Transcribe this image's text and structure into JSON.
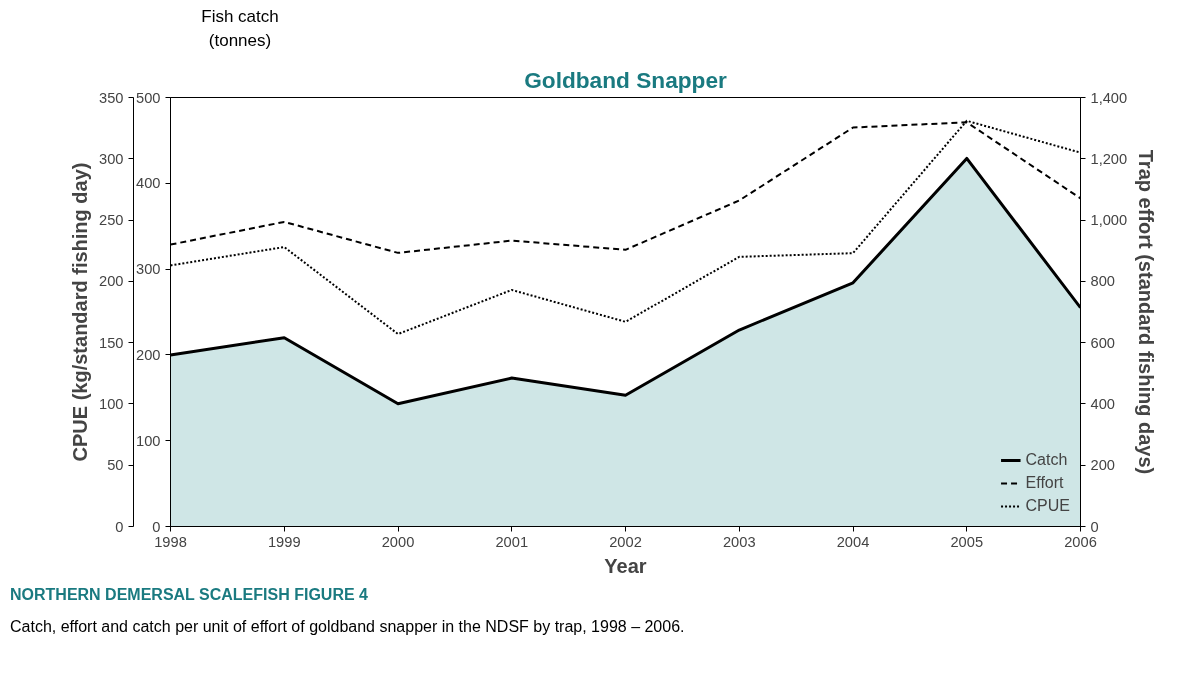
{
  "chart_data": {
    "type": "line",
    "title": "Goldband Snapper",
    "xlabel": "Year",
    "ylabel": "Fish catch (tonnes)",
    "y2label": "Trap effort (standard fishing days)",
    "y3label": "CPUE (kg/standard fishing day)",
    "x": [
      1998,
      1999,
      2000,
      2001,
      2002,
      2003,
      2004,
      2005,
      2006
    ],
    "xlim": [
      1998,
      2006
    ],
    "xticks": [
      1998,
      1999,
      2000,
      2001,
      2002,
      2003,
      2004,
      2005,
      2006
    ],
    "ylim": [
      0,
      500
    ],
    "yticks": [
      0,
      100,
      200,
      300,
      400,
      500
    ],
    "y2lim": [
      0,
      1400
    ],
    "y2ticks": [
      0,
      200,
      400,
      600,
      800,
      {
        "value": 1000,
        "label": "1,000"
      },
      {
        "value": 1200,
        "label": "1,200"
      },
      {
        "value": 1400,
        "label": "1,400"
      }
    ],
    "y3lim": [
      0,
      350
    ],
    "y3ticks": [
      0,
      50,
      100,
      150,
      200,
      250,
      300,
      350
    ],
    "series": [
      {
        "name": "Catch",
        "type": "area",
        "color": "#cfe6e6",
        "line_style": "solid",
        "values": [
          200,
          220,
          143,
          173,
          153,
          229,
          284,
          429,
          255
        ]
      },
      {
        "name": "Effort",
        "axis": "y2",
        "color": "#000000",
        "line_style": "dashed",
        "values": [
          920,
          994,
          893,
          933,
          903,
          1064,
          1302,
          1319,
          1071
        ]
      },
      {
        "name": "CPUE",
        "axis": "y3",
        "color": "#000000",
        "line_style": "dotted",
        "values": [
          213,
          228,
          157,
          193,
          167,
          220,
          223,
          331,
          305
        ]
      }
    ],
    "legend": "bottom right",
    "grid": false,
    "annotations": [
      "NORTHERN DEMERSAL SCALEFISH FIGURE 4",
      "Catch, effort and catch per unit of effort of goldband snapper in the NDSF by trap, 1998 – 2006."
    ]
  }
}
